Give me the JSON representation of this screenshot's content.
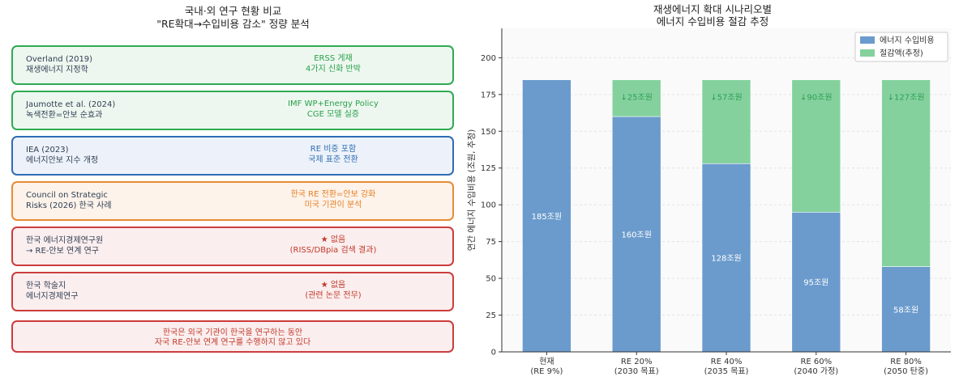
{
  "left_panel": {
    "title_line1": "국내·외 연구 현황 비교",
    "title_line2": "\"RE확대→수입비용 감소\" 정량 분석",
    "cards": [
      {
        "left1": "Overland (2019)",
        "left2": "재생에너지 지정학",
        "right1": "ERSS 게재",
        "right2": "4가지 신화 반박",
        "border": "#2eaa55",
        "bg": "#eef7ef",
        "text_color": "#27a04c"
      },
      {
        "left1": "Jaumotte et al. (2024)",
        "left2": "녹색전환=안보 순효과",
        "right1": "IMF WP+Energy Policy",
        "right2": "CGE 모델 실증",
        "border": "#2eaa55",
        "bg": "#eef7ef",
        "text_color": "#27a04c"
      },
      {
        "left1": "IEA (2023)",
        "left2": "에너지안보 지수 개정",
        "right1": "RE 비중 포함",
        "right2": "국제 표준 전환",
        "border": "#2f6db3",
        "bg": "#edf2fa",
        "text_color": "#2f6db3"
      },
      {
        "left1": "Council on Strategic",
        "left2": "Risks (2026) 한국 사례",
        "right1": "한국 RE 전환=안보 강화",
        "right2": "미국 기관이 분석",
        "border": "#ea8a35",
        "bg": "#fdf3ea",
        "text_color": "#e67e22"
      },
      {
        "left1": "한국 에너지경제연구원",
        "left2": "→ RE-안보 연계 연구",
        "right1": "★ 없음",
        "right2": "(RISS/DBpia 검색 결과)",
        "border": "#cc3d3d",
        "bg": "#fbeeee",
        "text_color": "#c0392b"
      },
      {
        "left1": "한국 학술지",
        "left2": "에너지경제연구",
        "right1": "★ 없음",
        "right2": "(관련 논문 전무)",
        "border": "#cc3d3d",
        "bg": "#fbeeee",
        "text_color": "#c0392b"
      }
    ],
    "note_line1": "한국은 외국 기관이 한국을 연구하는 동안",
    "note_line2": "자국 RE-안보 연계 연구를 수행하지 않고 있다"
  },
  "chart_data": {
    "type": "bar",
    "stacked": true,
    "title": "재생에너지 확대 시나리오별\n에너지 수입비용 절감 추정",
    "title_line1": "재생에너지 확대 시나리오별",
    "title_line2": "에너지 수입비용 절감 추정",
    "ylabel": "연간 에너지 수입비용 (조원, 추정)",
    "xlabel": "",
    "ylim": [
      0,
      220
    ],
    "yticks": [
      0,
      25,
      50,
      75,
      100,
      125,
      150,
      175,
      200
    ],
    "categories": [
      [
        "현재",
        "(RE 9%)"
      ],
      [
        "RE 20%",
        "(2030 목표)"
      ],
      [
        "RE 40%",
        "(2035 목표)"
      ],
      [
        "RE 60%",
        "(2040 가정)"
      ],
      [
        "RE 80%",
        "(2050 탄중)"
      ]
    ],
    "series": [
      {
        "name": "에너지 수입비용",
        "color": "#6b9bcc",
        "values": [
          185,
          160,
          128,
          95,
          58
        ],
        "labels": [
          "185조원",
          "160조원",
          "128조원",
          "95조원",
          "58조원"
        ]
      },
      {
        "name": "절감액(추정)",
        "color": "#84d19e",
        "values": [
          0,
          25,
          57,
          90,
          127
        ],
        "labels": [
          "",
          "↓25조원",
          "↓57조원",
          "↓90조원",
          "↓127조원"
        ]
      }
    ],
    "legend_position": "top-right",
    "grid": true
  }
}
